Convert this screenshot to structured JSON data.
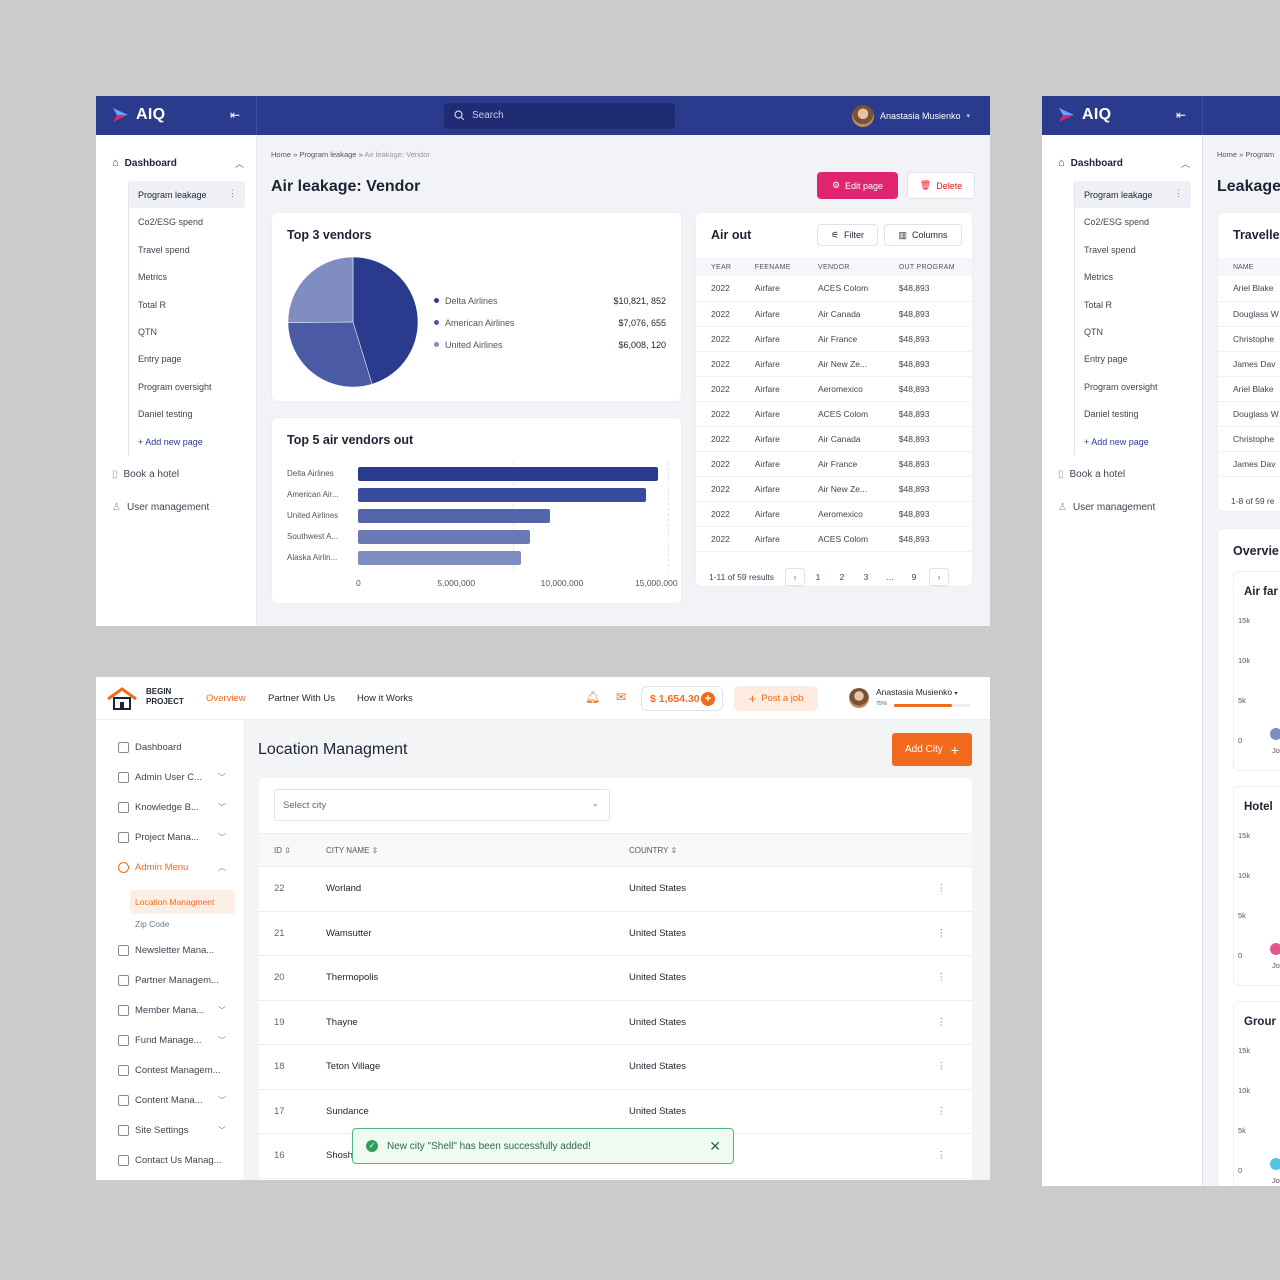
{
  "aiq": {
    "brand": "AIQ",
    "search_placeholder": "Search",
    "user_name": "Anastasia Musienko",
    "sidebar": {
      "dashboard": "Dashboard",
      "items": [
        "Program leakage",
        "Co2/ESG spend",
        "Travel spend",
        "Metrics",
        "Total R",
        "QTN",
        "Entry page",
        "Program oversight",
        "Daniel testing"
      ],
      "add_new_page": "Add new page",
      "book_hotel": "Book a hotel",
      "user_management": "User management"
    }
  },
  "vendor_page": {
    "breadcrumb": [
      "Home",
      "Program leakage",
      "Air leakage: Vendor"
    ],
    "title": "Air leakage: Vendor",
    "edit_button": "Edit page",
    "delete_button": "Delete",
    "top3": {
      "title": "Top 3 vendors",
      "legend": [
        {
          "name": "Delta Airlines",
          "value": "$10,821, 852",
          "color": "#2a3a8c"
        },
        {
          "name": "American Airlines",
          "value": "$7,076, 655",
          "color": "#4a5aa4"
        },
        {
          "name": "United Airlines",
          "value": "$6,008, 120",
          "color": "#7f8dc0"
        }
      ]
    },
    "top5_title": "Top 5 air vendors out",
    "air_out": {
      "title": "Air out",
      "filter": "Filter",
      "columns_button": "Columns",
      "headers": [
        "YEAR",
        "FEENAME",
        "VENDOR",
        "OUT PROGRAM"
      ],
      "rows": [
        [
          "2022",
          "Airfare",
          "ACES Colom",
          "$48,893"
        ],
        [
          "2022",
          "Airfare",
          "Air Canada",
          "$48,893"
        ],
        [
          "2022",
          "Airfare",
          "Air France",
          "$48,893"
        ],
        [
          "2022",
          "Airfare",
          "Air New Ze...",
          "$48,893"
        ],
        [
          "2022",
          "Airfare",
          "Aeromexico",
          "$48,893"
        ],
        [
          "2022",
          "Airfare",
          "ACES Colom",
          "$48,893"
        ],
        [
          "2022",
          "Airfare",
          "Air Canada",
          "$48,893"
        ],
        [
          "2022",
          "Airfare",
          "Air France",
          "$48,893"
        ],
        [
          "2022",
          "Airfare",
          "Air New Ze...",
          "$48,893"
        ],
        [
          "2022",
          "Airfare",
          "Aeromexico",
          "$48,893"
        ],
        [
          "2022",
          "Airfare",
          "ACES Colom",
          "$48,893"
        ]
      ],
      "results": "1-11 of 59 results",
      "pages": [
        "1",
        "2",
        "3",
        "...",
        "9"
      ]
    }
  },
  "chart_data": [
    {
      "type": "pie",
      "title": "Top 3 vendors",
      "categories": [
        "Delta Airlines",
        "American Airlines",
        "United Airlines"
      ],
      "values": [
        10821852,
        7076655,
        6008120
      ]
    },
    {
      "type": "bar",
      "title": "Top 5 air vendors out",
      "orientation": "horizontal",
      "categories": [
        "Delta Airlines",
        "American Air...",
        "United Airlines",
        "Southwest A...",
        "Alaska Airlin..."
      ],
      "values": [
        14500000,
        13950000,
        9300000,
        8300000,
        7900000
      ],
      "xlim": [
        0,
        15000000
      ],
      "xticks": [
        "0",
        "5,000,000",
        "10,000,000",
        "15,000,000"
      ]
    }
  ],
  "leakage_page": {
    "breadcrumb": [
      "Home",
      "Program"
    ],
    "title": "Leakage",
    "table_title": "Travelle",
    "name_header": "NAME",
    "names": [
      "Ariel Blake",
      "Douglass W",
      "Christophe",
      "James Dav",
      "Ariel Blake",
      "Douglass W",
      "Christophe",
      "James Dav"
    ],
    "results": "1-8 of 59 re",
    "overview": "Overvie",
    "minis": [
      {
        "title": "Air far",
        "ticks": [
          "15k",
          "10k",
          "5k",
          "0"
        ],
        "dot": "#7f8dc0",
        "label": "Jo"
      },
      {
        "title": "Hotel",
        "ticks": [
          "15k",
          "10k",
          "5k",
          "0"
        ],
        "dot": "#e0568f",
        "label": "Jo"
      },
      {
        "title": "Grour",
        "ticks": [
          "15k",
          "10k",
          "5k",
          "0"
        ],
        "dot": "#4fc3e8",
        "label": "Jo"
      }
    ]
  },
  "begin": {
    "logo_line1": "BEGIN",
    "logo_line2": "PROJECT",
    "nav": [
      "Overview",
      "Partner With Us",
      "How it Works"
    ],
    "balance": "$ 1,654.30",
    "post_job": "Post a job",
    "user_name": "Anastasia Musienko",
    "progress_label": "75%",
    "progress_fraction": 0.75,
    "sidebar": [
      {
        "label": "Dashboard",
        "chevron": false
      },
      {
        "label": "Admin User C...",
        "chevron": true
      },
      {
        "label": "Knowledge B...",
        "chevron": true
      },
      {
        "label": "Project Mana...",
        "chevron": true
      },
      {
        "label": "Admin Menu",
        "chevron": true
      },
      {
        "label": "Newsletter Mana...",
        "chevron": false
      },
      {
        "label": "Partner Managem...",
        "chevron": false
      },
      {
        "label": "Member Mana...",
        "chevron": true
      },
      {
        "label": "Fund Manage...",
        "chevron": true
      },
      {
        "label": "Contest Managem...",
        "chevron": false
      },
      {
        "label": "Content Mana...",
        "chevron": true
      },
      {
        "label": "Site Settings",
        "chevron": true
      },
      {
        "label": "Contact Us Manag...",
        "chevron": false
      }
    ],
    "sub_items": [
      "Location Managment",
      "Zip Code"
    ],
    "title": "Location Managment",
    "add_city": "Add City",
    "select_placeholder": "Select city",
    "headers": [
      "ID",
      "CITY NAME",
      "COUNTRY"
    ],
    "rows": [
      [
        "22",
        "Worland",
        "United States"
      ],
      [
        "21",
        "Wamsutter",
        "United States"
      ],
      [
        "20",
        "Thermopolis",
        "United States"
      ],
      [
        "19",
        "Thayne",
        "United States"
      ],
      [
        "18",
        "Teton Village",
        "United States"
      ],
      [
        "17",
        "Sundance",
        "United States"
      ],
      [
        "16",
        "Shosh",
        "United States"
      ]
    ],
    "toast": "New city \"Shell\" has been successfully added!"
  }
}
